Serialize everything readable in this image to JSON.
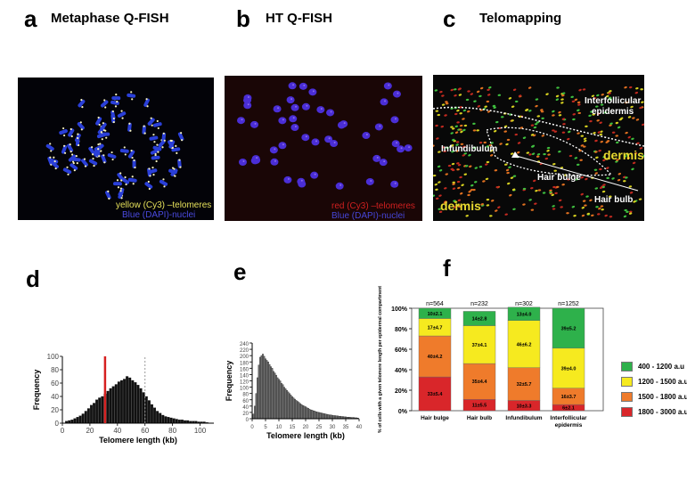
{
  "panels": {
    "a": {
      "letter": "a",
      "title": "Metaphase Q-FISH",
      "caption_yellow": "yellow (Cy3) –telomeres",
      "caption_blue": "Blue (DAPI)-nuclei"
    },
    "b": {
      "letter": "b",
      "title": "HT Q-FISH",
      "caption_red": "red (Cy3) –telomeres",
      "caption_blue": "Blue (DAPI)-nuclei"
    },
    "c": {
      "letter": "c",
      "title": "Telomapping",
      "labels": {
        "interfollicular": "Interfollicular",
        "epidermis": "epidermis",
        "infundibulum": "Infundibulum",
        "dermis_right": "dermis",
        "hair_bulge": "Hair bulge",
        "hair_bulb": "Hair bulb",
        "dermis_left": "dermis"
      }
    },
    "d": {
      "letter": "d"
    },
    "e": {
      "letter": "e"
    },
    "f": {
      "letter": "f"
    }
  },
  "colors": {
    "green": "#2eb14b",
    "yellow": "#f6ea1f",
    "orange": "#ef7b2b",
    "red": "#d9262a",
    "telomere_line": "#d62020"
  },
  "chart_data": [
    {
      "id": "d",
      "type": "bar",
      "xlabel": "Telomere length (kb)",
      "ylabel": "Frequency",
      "xlim": [
        0,
        110
      ],
      "ylim": [
        0,
        100
      ],
      "xticks": [
        "0",
        "20",
        "40",
        "60",
        "80",
        "100"
      ],
      "yticks": [
        "0",
        "20",
        "40",
        "60",
        "80",
        "100"
      ],
      "marker_red_x": 31,
      "marker_dotted_x": 60,
      "x": [
        3,
        5,
        7,
        9,
        11,
        13,
        15,
        17,
        19,
        21,
        23,
        25,
        27,
        29,
        31,
        33,
        35,
        37,
        39,
        41,
        43,
        45,
        47,
        49,
        51,
        53,
        55,
        57,
        59,
        61,
        63,
        65,
        67,
        69,
        71,
        73,
        75,
        77,
        79,
        81,
        83,
        85,
        87,
        89,
        91,
        93,
        95,
        97,
        99,
        101,
        103,
        105
      ],
      "values": [
        3,
        4,
        5,
        7,
        9,
        11,
        14,
        18,
        22,
        27,
        30,
        35,
        38,
        40,
        44,
        48,
        52,
        55,
        58,
        62,
        64,
        66,
        70,
        68,
        64,
        61,
        57,
        52,
        46,
        40,
        34,
        28,
        23,
        18,
        15,
        12,
        10,
        9,
        8,
        7,
        6,
        5,
        5,
        4,
        4,
        3,
        3,
        3,
        2,
        2,
        2,
        1
      ]
    },
    {
      "id": "e",
      "type": "bar",
      "xlabel": "Telomere length (kb)",
      "ylabel": "Frequency",
      "xlim": [
        0,
        40
      ],
      "ylim": [
        0,
        240
      ],
      "xticks": [
        "0",
        "5",
        "10",
        "15",
        "20",
        "25",
        "30",
        "35",
        "40"
      ],
      "yticks": [
        "0",
        "20",
        "40",
        "60",
        "80",
        "100",
        "120",
        "140",
        "160",
        "180",
        "200",
        "220",
        "240"
      ],
      "x": [
        0.5,
        1,
        1.5,
        2,
        2.5,
        3,
        3.5,
        4,
        4.5,
        5,
        5.5,
        6,
        6.5,
        7,
        7.5,
        8,
        8.5,
        9,
        9.5,
        10,
        10.5,
        11,
        11.5,
        12,
        12.5,
        13,
        13.5,
        14,
        14.5,
        15,
        15.5,
        16,
        16.5,
        17,
        17.5,
        18,
        18.5,
        19,
        19.5,
        20,
        20.5,
        21,
        21.5,
        22,
        22.5,
        23,
        23.5,
        24,
        24.5,
        25,
        25.5,
        26,
        26.5,
        27,
        27.5,
        28,
        28.5,
        29,
        29.5,
        30,
        30.5,
        31,
        31.5,
        32,
        32.5,
        33,
        33.5,
        34,
        34.5,
        35,
        35.5,
        36,
        36.5,
        37,
        37.5,
        38,
        38.5,
        39,
        39.5
      ],
      "values": [
        15,
        40,
        80,
        130,
        170,
        195,
        200,
        205,
        198,
        190,
        185,
        180,
        172,
        165,
        160,
        150,
        145,
        138,
        130,
        125,
        120,
        112,
        108,
        100,
        95,
        90,
        85,
        80,
        75,
        70,
        66,
        62,
        58,
        55,
        52,
        48,
        45,
        42,
        40,
        38,
        35,
        33,
        30,
        28,
        27,
        25,
        24,
        22,
        21,
        20,
        19,
        18,
        17,
        16,
        15,
        14,
        13,
        12,
        12,
        11,
        10,
        10,
        9,
        9,
        8,
        8,
        7,
        7,
        6,
        6,
        5,
        5,
        5,
        4,
        4,
        4,
        3,
        3,
        2
      ]
    },
    {
      "id": "f",
      "type": "bar",
      "stacked": true,
      "ylabel": "% of cells with a given telomere length per epidermal compartment",
      "ylim": [
        0,
        100
      ],
      "yticks": [
        "0%",
        "20%",
        "40%",
        "60%",
        "80%",
        "100%"
      ],
      "categories": [
        "Hair bulge",
        "Hair bulb",
        "Infundibulum",
        "Interfollicular epidermis"
      ],
      "n_labels": [
        "n=564",
        "n=232",
        "n=302",
        "n=1252"
      ],
      "series": [
        {
          "name": "1800 - 3000 a.u",
          "color": "#d9262a",
          "values": [
            33,
            11,
            10,
            6
          ],
          "labels": [
            "33±5.4",
            "11±5.5",
            "10±3.3",
            "6±2.1"
          ]
        },
        {
          "name": "1500 - 1800 a.u",
          "color": "#ef7b2b",
          "values": [
            40,
            35,
            32,
            16
          ],
          "labels": [
            "40±4.2",
            "35±4.4",
            "32±5.7",
            "16±3.7"
          ]
        },
        {
          "name": "1200 - 1500 a.u",
          "color": "#f6ea1f",
          "values": [
            17,
            37,
            46,
            39
          ],
          "labels": [
            "17±4.7",
            "37±4.1",
            "46±6.2",
            "39±4.0"
          ]
        },
        {
          "name": "400 - 1200 a.u",
          "color": "#2eb14b",
          "values": [
            10,
            14,
            13,
            39
          ],
          "labels": [
            "10±2.1",
            "14±2.8",
            "13±4.0",
            "39±5.2"
          ]
        }
      ]
    }
  ],
  "legend": [
    {
      "label": "400 - 1200 a.u",
      "color": "#2eb14b"
    },
    {
      "label": "1200 - 1500 a.u",
      "color": "#f6ea1f"
    },
    {
      "label": "1500 - 1800 a.u",
      "color": "#ef7b2b"
    },
    {
      "label": "1800 - 3000 a.u",
      "color": "#d9262a"
    }
  ]
}
